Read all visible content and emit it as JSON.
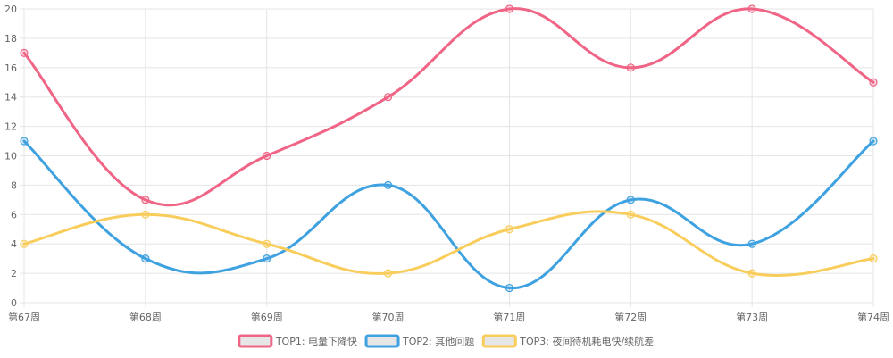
{
  "chart_data": {
    "type": "line",
    "categories": [
      "第67周",
      "第68周",
      "第69周",
      "第70周",
      "第71周",
      "第72周",
      "第73周",
      "第74周"
    ],
    "series": [
      {
        "name": "TOP1: 电量下降快",
        "values": [
          17,
          7,
          10,
          14,
          20,
          16,
          20,
          15
        ],
        "color": "#f06485"
      },
      {
        "name": "TOP2: 其他问题",
        "values": [
          11,
          3,
          3,
          8,
          1,
          7,
          4,
          11
        ],
        "color": "#3ea1e0"
      },
      {
        "name": "TOP3: 夜间待机耗电快/续航差",
        "values": [
          4,
          6,
          4,
          2,
          5,
          6,
          2,
          3
        ],
        "color": "#f9cd5b"
      }
    ],
    "yticks": [
      0,
      2,
      4,
      6,
      8,
      10,
      12,
      14,
      16,
      18,
      20
    ],
    "ylim": [
      0,
      20
    ],
    "grid": true,
    "legend_position": "bottom"
  }
}
